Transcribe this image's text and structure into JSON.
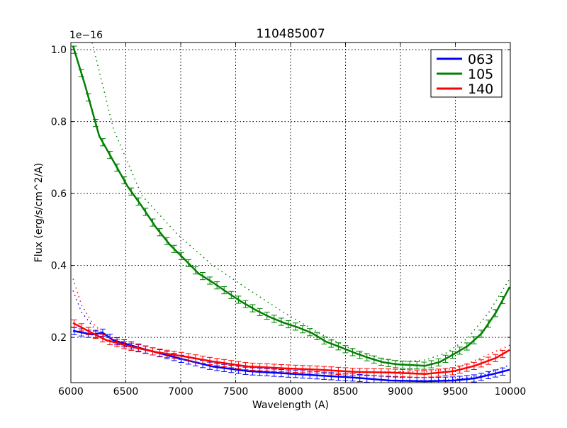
{
  "chart_data": {
    "type": "line",
    "title": "110485007",
    "xlabel": "Wavelength (A)",
    "ylabel": "Flux (erg/s/cm^2/A)",
    "y_multiplier_label": "1e−16",
    "xlim": [
      6000,
      10000
    ],
    "ylim": [
      0.074,
      1.02
    ],
    "xticks": [
      6000,
      6500,
      7000,
      7500,
      8000,
      8500,
      9000,
      9500,
      10000
    ],
    "xtick_labels": [
      "6000",
      "6500",
      "7000",
      "7500",
      "8000",
      "8500",
      "9000",
      "9500",
      "10000"
    ],
    "yticks": [
      0.2,
      0.4,
      0.6,
      0.8,
      1.0
    ],
    "ytick_labels": [
      "0.2",
      "0.4",
      "0.6",
      "0.8",
      "1.0"
    ],
    "grid": true,
    "legend_position": "top-right",
    "series": [
      {
        "name": "063",
        "color": "#0000ff",
        "x": [
          6020,
          6194,
          6290,
          6387,
          6645,
          6968,
          7290,
          7613,
          7935,
          8258,
          8581,
          8903,
          9226,
          9484,
          9677,
          9871,
          9994
        ],
        "y": [
          0.218,
          0.208,
          0.213,
          0.192,
          0.169,
          0.143,
          0.119,
          0.106,
          0.1,
          0.094,
          0.088,
          0.08,
          0.078,
          0.08,
          0.086,
          0.1,
          0.11
        ],
        "model_x": [
          6020,
          6097,
          6226,
          6387,
          6645,
          6968,
          7290,
          7613,
          7935,
          8258,
          8581,
          8903,
          9226,
          9484,
          9742,
          9994
        ],
        "model_y": [
          0.33,
          0.27,
          0.22,
          0.19,
          0.168,
          0.142,
          0.119,
          0.106,
          0.1,
          0.094,
          0.088,
          0.08,
          0.08,
          0.082,
          0.094,
          0.123
        ]
      },
      {
        "name": "105",
        "color": "#008000",
        "x": [
          6020,
          6130,
          6258,
          6387,
          6516,
          6645,
          6774,
          6903,
          7032,
          7161,
          7290,
          7419,
          7548,
          7677,
          7806,
          7935,
          8065,
          8194,
          8323,
          8452,
          8581,
          8710,
          8839,
          8968,
          9097,
          9226,
          9355,
          9484,
          9613,
          9742,
          9871,
          9994
        ],
        "y": [
          1.01,
          0.9,
          0.76,
          0.69,
          0.62,
          0.565,
          0.506,
          0.457,
          0.418,
          0.378,
          0.353,
          0.326,
          0.3,
          0.277,
          0.257,
          0.241,
          0.228,
          0.212,
          0.188,
          0.173,
          0.157,
          0.143,
          0.131,
          0.125,
          0.123,
          0.121,
          0.131,
          0.153,
          0.176,
          0.212,
          0.27,
          0.34
        ],
        "model_x": [
          6194,
          6387,
          6645,
          6968,
          7290,
          7613,
          7935,
          8258,
          8581,
          8839,
          9032,
          9226,
          9419,
          9613,
          9806,
          9994
        ],
        "model_y": [
          1.02,
          0.78,
          0.595,
          0.487,
          0.4,
          0.334,
          0.27,
          0.212,
          0.163,
          0.139,
          0.133,
          0.137,
          0.157,
          0.198,
          0.27,
          0.363
        ]
      },
      {
        "name": "140",
        "color": "#ff0000",
        "x": [
          6020,
          6194,
          6323,
          6516,
          6774,
          7032,
          7290,
          7613,
          7935,
          8258,
          8581,
          8903,
          9226,
          9484,
          9677,
          9871,
          9994
        ],
        "y": [
          0.24,
          0.212,
          0.192,
          0.176,
          0.159,
          0.147,
          0.133,
          0.119,
          0.114,
          0.11,
          0.104,
          0.102,
          0.098,
          0.106,
          0.121,
          0.143,
          0.165
        ],
        "model_x": [
          6020,
          6097,
          6194,
          6323,
          6516,
          6774,
          7032,
          7290,
          7613,
          7935,
          8258,
          8581,
          8903,
          9226,
          9484,
          9613,
          9806,
          9994
        ],
        "model_y": [
          0.363,
          0.29,
          0.241,
          0.202,
          0.178,
          0.16,
          0.147,
          0.133,
          0.119,
          0.114,
          0.11,
          0.104,
          0.104,
          0.104,
          0.113,
          0.127,
          0.153,
          0.178
        ]
      }
    ]
  }
}
